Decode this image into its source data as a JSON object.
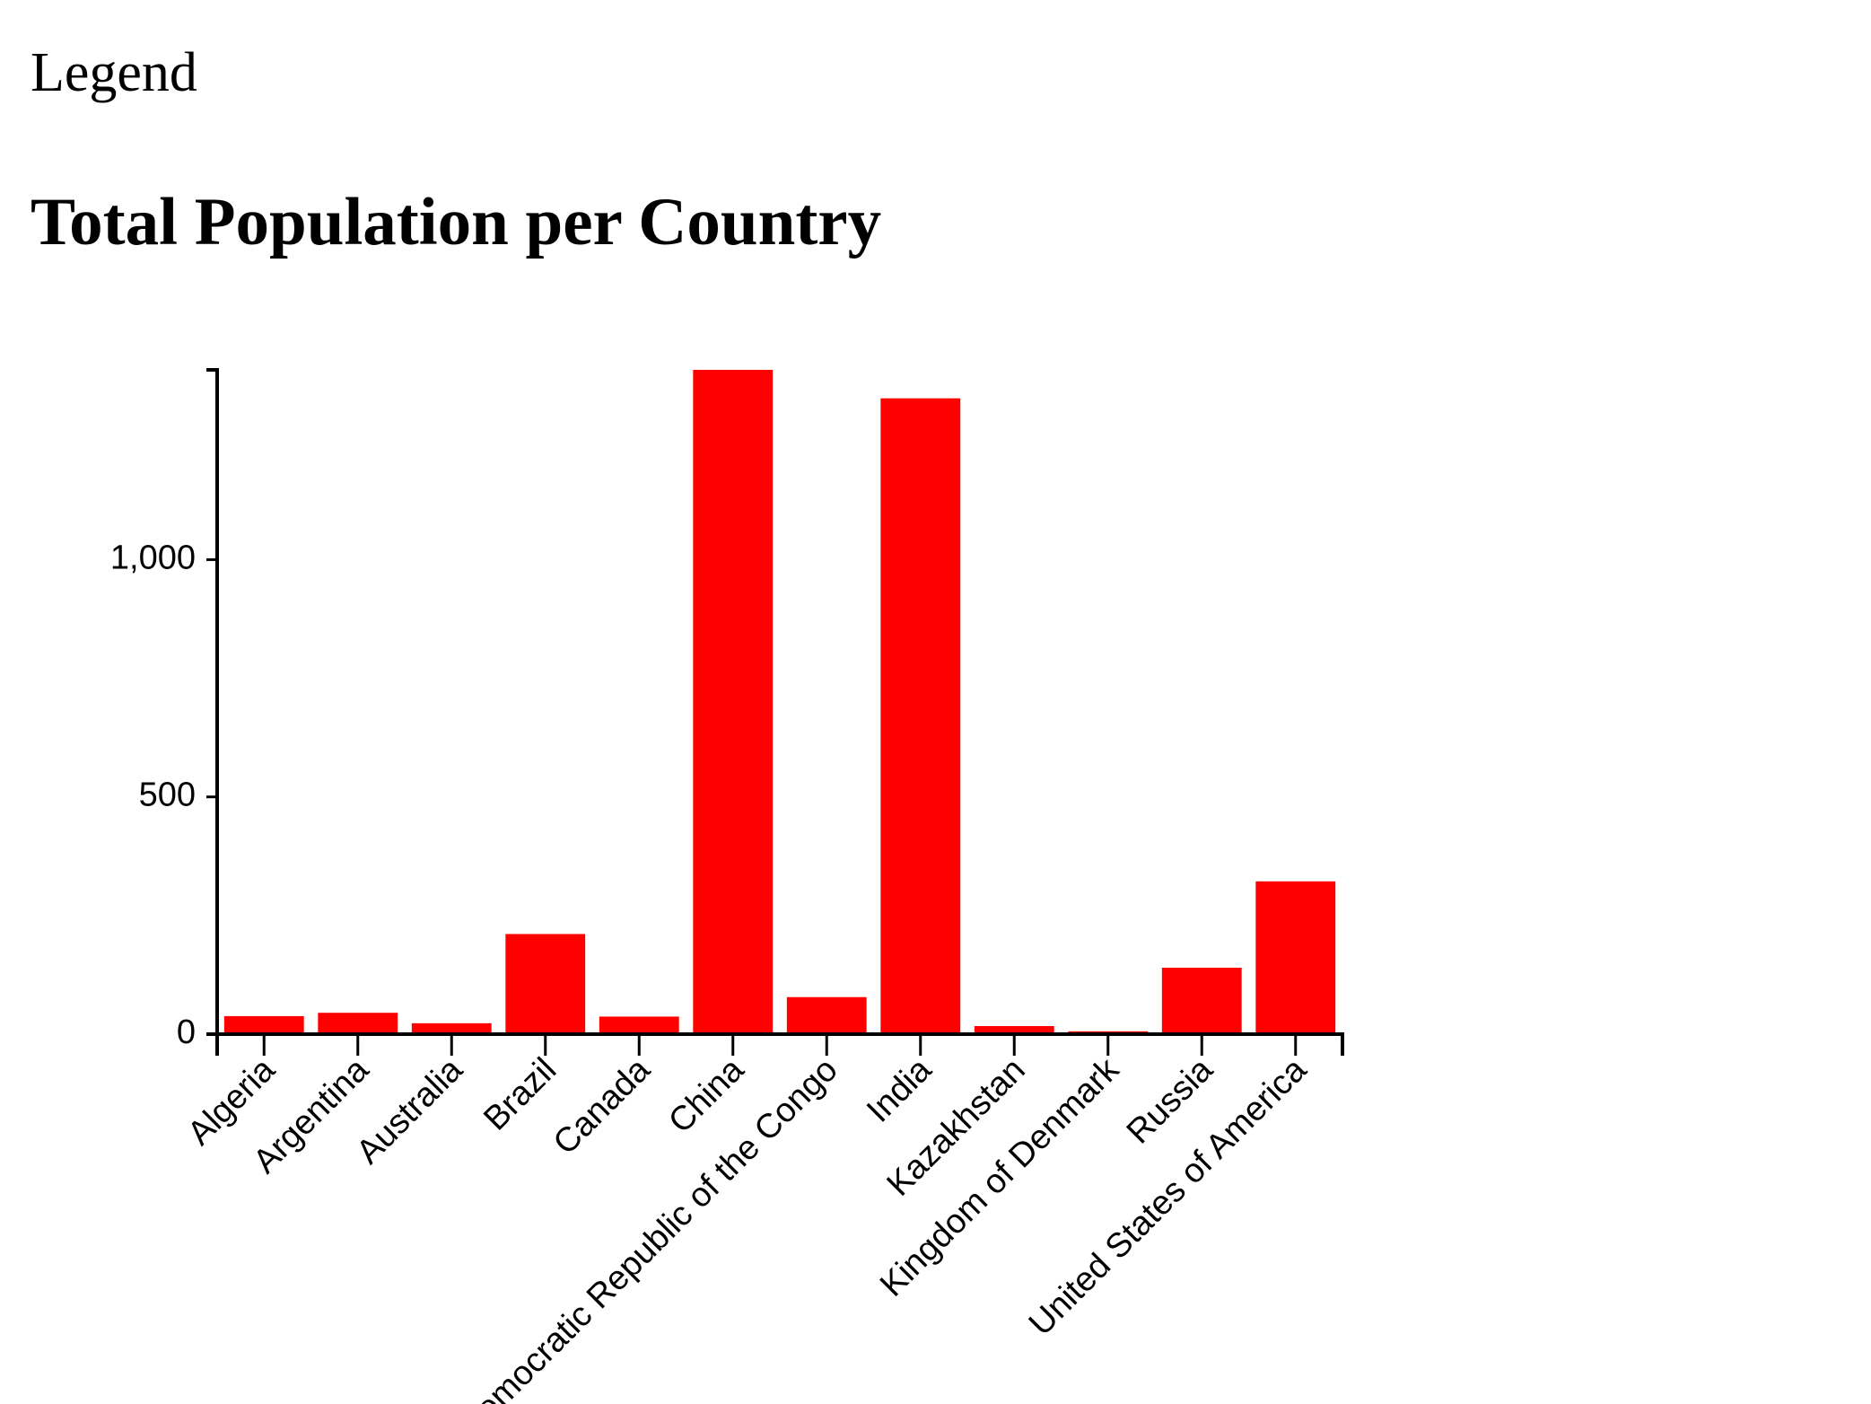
{
  "legend": {
    "label": "Legend"
  },
  "chart_data": {
    "type": "bar",
    "title": "Total Population per Country",
    "xlabel": "",
    "ylabel": "",
    "categories": [
      "Algeria",
      "Argentina",
      "Australia",
      "Brazil",
      "Canada",
      "China",
      "Democratic Republic of the Congo",
      "India",
      "Kazakhstan",
      "Kingdom of Denmark",
      "Russia",
      "United States of America"
    ],
    "values": [
      38,
      45,
      23,
      211,
      37,
      1400,
      78,
      1340,
      17,
      6,
      140,
      322
    ],
    "ylim": [
      0,
      1400
    ],
    "yticks": [
      0,
      500,
      1000
    ],
    "ytick_labels": [
      "0",
      "500",
      "1,000"
    ],
    "bar_color": "#ff0000",
    "grid": false
  }
}
